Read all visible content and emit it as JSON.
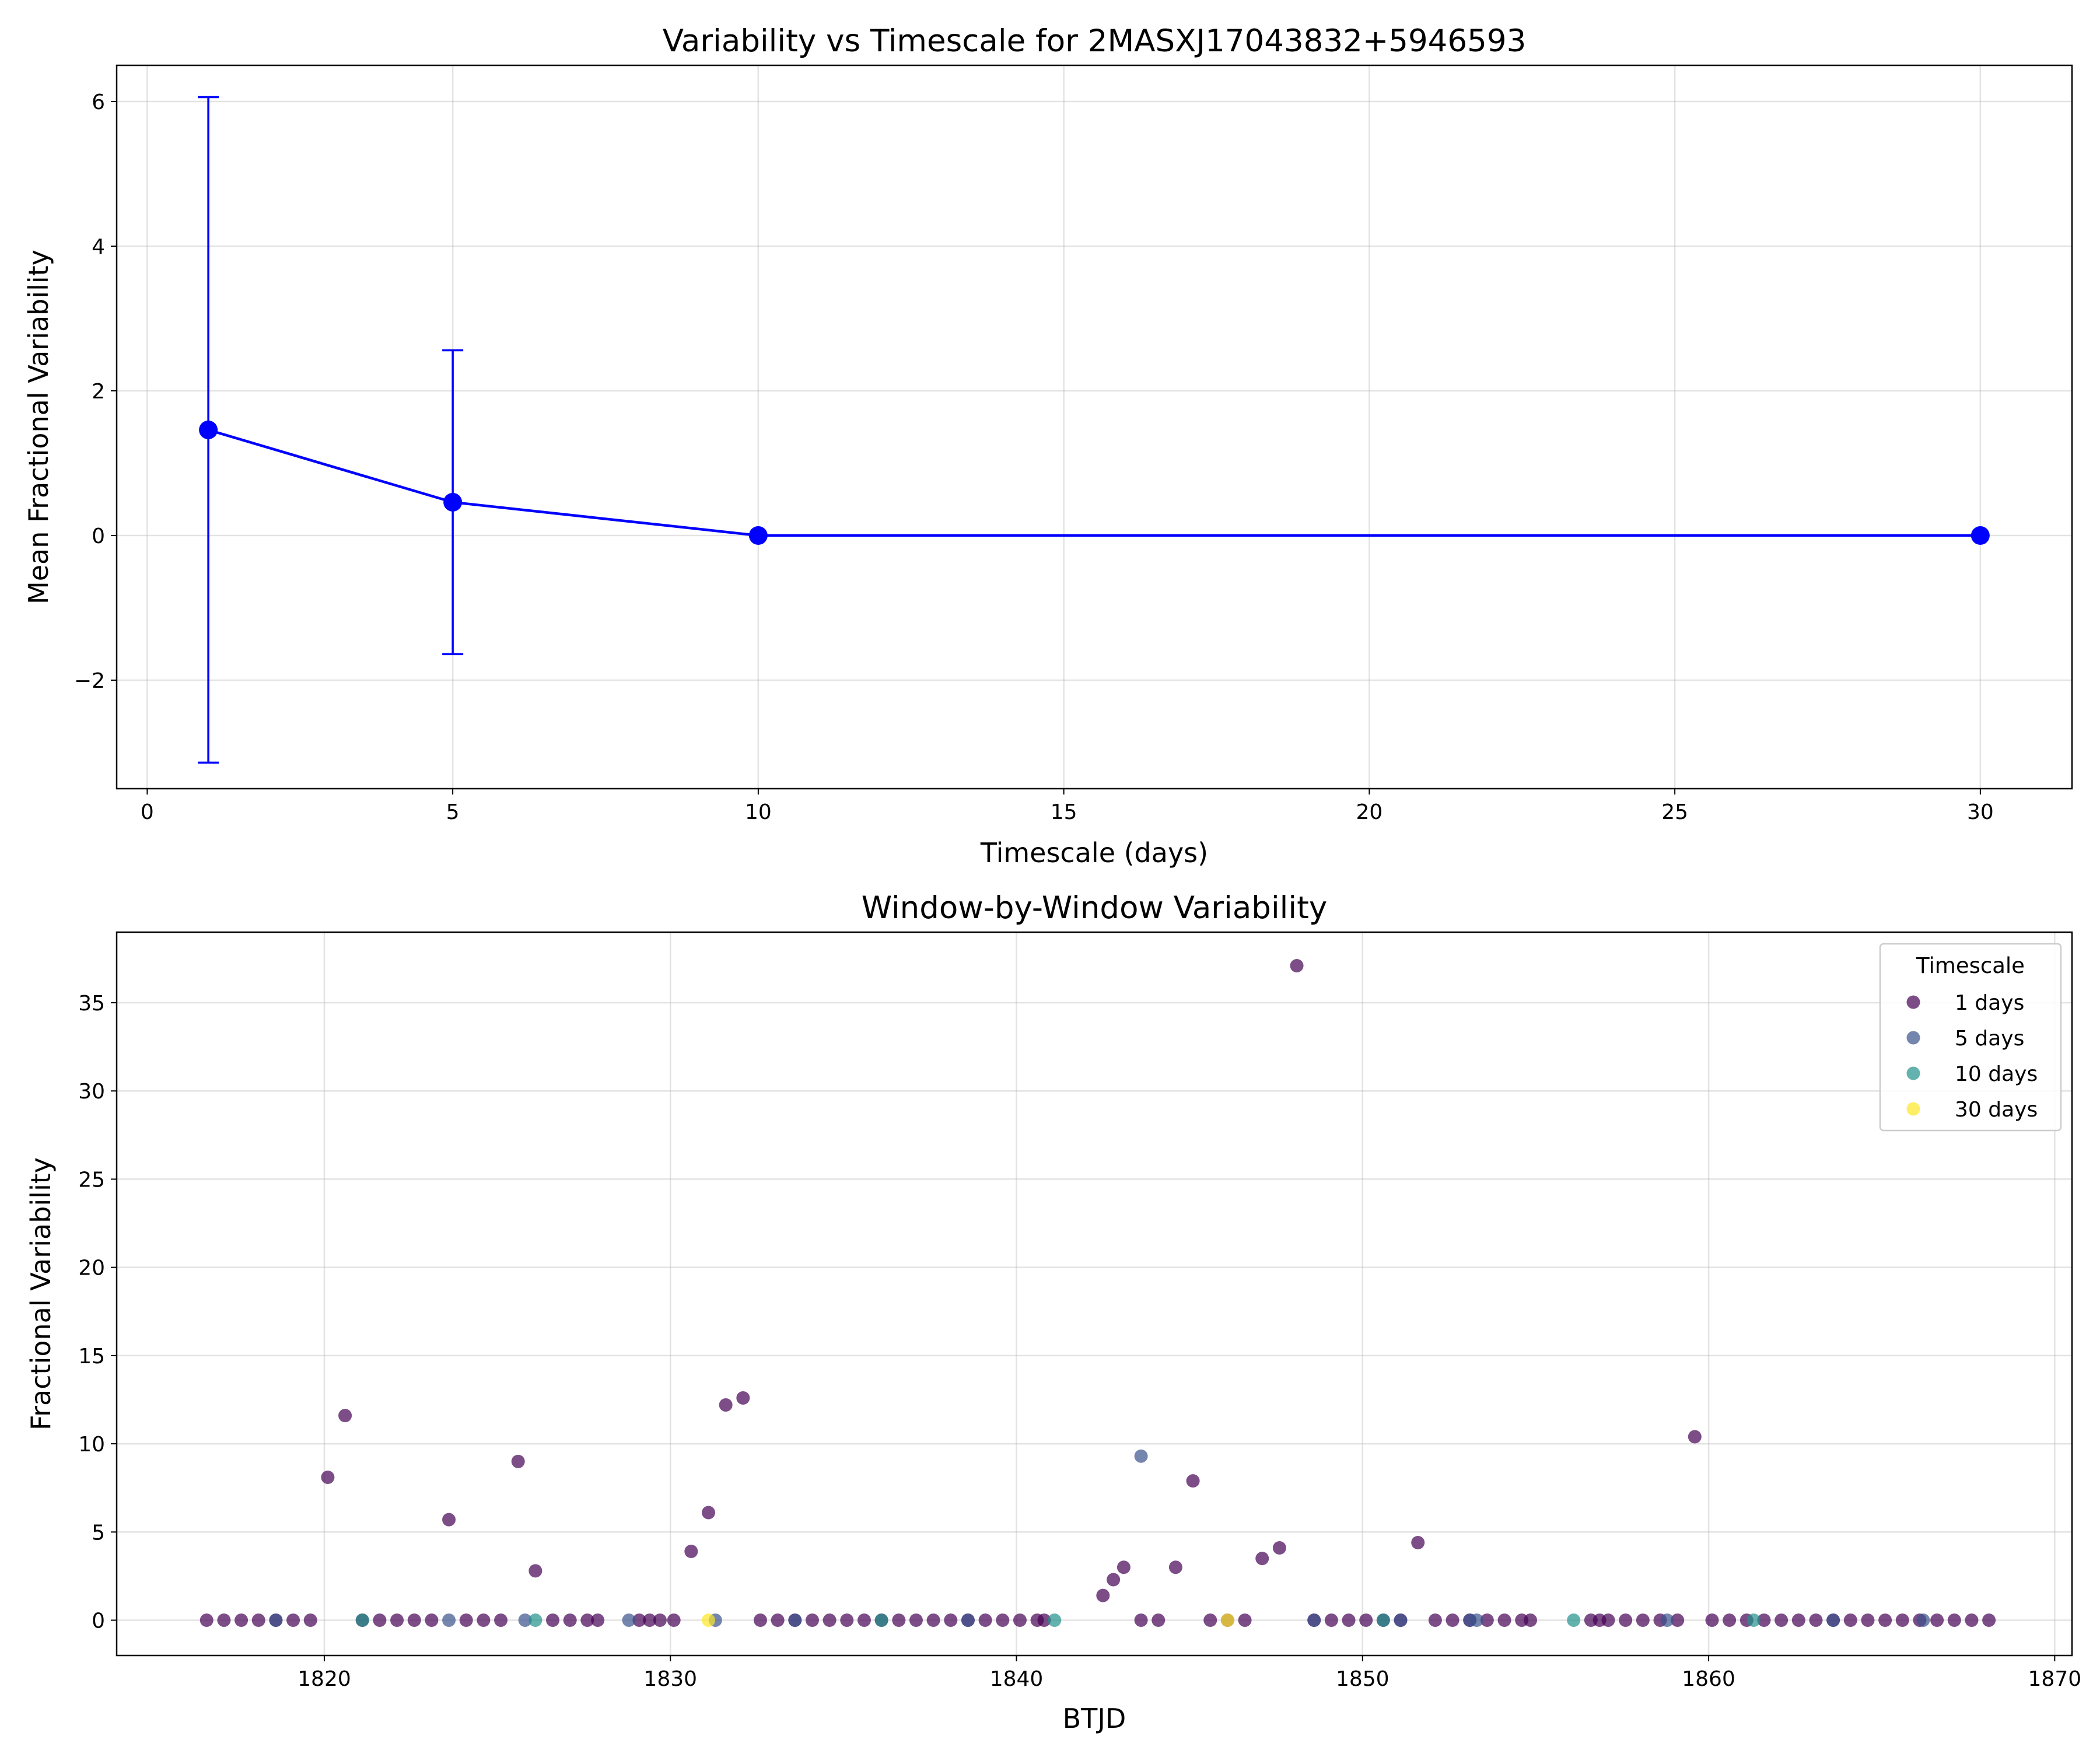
{
  "chart_data": [
    {
      "type": "line",
      "title": "Variability vs Timescale for 2MASXJ17043832+5946593",
      "xlabel": "Timescale (days)",
      "ylabel": "Mean Fractional Variability",
      "xlim": [
        -0.5,
        31.5
      ],
      "ylim": [
        -3.5,
        6.5
      ],
      "xticks": [
        0,
        5,
        10,
        15,
        20,
        25,
        30
      ],
      "yticks": [
        -2,
        0,
        2,
        4,
        6
      ],
      "ytick_labels": [
        "−2",
        "0",
        "2",
        "4",
        "6"
      ],
      "grid": true,
      "color": "#0000ff",
      "series": [
        {
          "x": [
            1,
            5,
            10,
            30
          ],
          "y": [
            1.46,
            0.46,
            0.0,
            0.0
          ],
          "err": [
            4.6,
            2.1,
            0.0,
            0.0
          ]
        }
      ]
    },
    {
      "type": "scatter",
      "title": "Window-by-Window Variability",
      "xlabel": "BTJD",
      "ylabel": "Fractional Variability",
      "xlim": [
        1814.0,
        1870.5
      ],
      "ylim": [
        -2.0,
        39.0
      ],
      "xticks": [
        1820,
        1830,
        1840,
        1850,
        1860,
        1870
      ],
      "yticks": [
        0,
        5,
        10,
        15,
        20,
        25,
        30,
        35
      ],
      "grid": true,
      "legend": {
        "title": "Timescale",
        "placement": "top-right"
      },
      "series": [
        {
          "name": "1 days",
          "color": "#440154",
          "points": [
            [
              1816.6,
              0
            ],
            [
              1817.1,
              0
            ],
            [
              1817.6,
              0
            ],
            [
              1818.1,
              0
            ],
            [
              1818.6,
              0
            ],
            [
              1819.1,
              0
            ],
            [
              1819.6,
              0
            ],
            [
              1820.1,
              8.1
            ],
            [
              1820.6,
              11.6
            ],
            [
              1821.1,
              0
            ],
            [
              1821.6,
              0
            ],
            [
              1822.1,
              0
            ],
            [
              1822.6,
              0
            ],
            [
              1823.1,
              0
            ],
            [
              1823.6,
              5.7
            ],
            [
              1824.1,
              0
            ],
            [
              1824.6,
              0
            ],
            [
              1825.1,
              0
            ],
            [
              1825.6,
              9.0
            ],
            [
              1826.1,
              2.8
            ],
            [
              1826.6,
              0
            ],
            [
              1827.1,
              0
            ],
            [
              1827.6,
              0
            ],
            [
              1827.9,
              0
            ],
            [
              1829.1,
              0
            ],
            [
              1829.4,
              0
            ],
            [
              1829.7,
              0
            ],
            [
              1830.1,
              0
            ],
            [
              1830.6,
              3.9
            ],
            [
              1831.1,
              6.1
            ],
            [
              1831.6,
              12.2
            ],
            [
              1832.1,
              12.6
            ],
            [
              1832.6,
              0
            ],
            [
              1833.1,
              0
            ],
            [
              1833.6,
              0
            ],
            [
              1834.1,
              0
            ],
            [
              1834.6,
              0
            ],
            [
              1835.1,
              0
            ],
            [
              1835.6,
              0
            ],
            [
              1836.1,
              0
            ],
            [
              1836.6,
              0
            ],
            [
              1837.1,
              0
            ],
            [
              1837.6,
              0
            ],
            [
              1838.1,
              0
            ],
            [
              1838.6,
              0
            ],
            [
              1839.1,
              0
            ],
            [
              1839.6,
              0
            ],
            [
              1840.1,
              0
            ],
            [
              1840.6,
              0
            ],
            [
              1840.8,
              0
            ],
            [
              1842.5,
              1.4
            ],
            [
              1842.8,
              2.3
            ],
            [
              1843.1,
              3.0
            ],
            [
              1843.6,
              0
            ],
            [
              1844.1,
              0
            ],
            [
              1844.6,
              3.0
            ],
            [
              1845.1,
              7.9
            ],
            [
              1845.6,
              0
            ],
            [
              1846.1,
              0
            ],
            [
              1846.6,
              0
            ],
            [
              1847.1,
              3.5
            ],
            [
              1847.6,
              4.1
            ],
            [
              1848.1,
              37.1
            ],
            [
              1848.6,
              0
            ],
            [
              1849.1,
              0
            ],
            [
              1849.6,
              0
            ],
            [
              1850.1,
              0
            ],
            [
              1850.6,
              0
            ],
            [
              1851.1,
              0
            ],
            [
              1851.6,
              4.4
            ],
            [
              1852.1,
              0
            ],
            [
              1852.6,
              0
            ],
            [
              1853.1,
              0
            ],
            [
              1853.6,
              0
            ],
            [
              1854.1,
              0
            ],
            [
              1854.6,
              0
            ],
            [
              1854.85,
              0
            ],
            [
              1856.6,
              0
            ],
            [
              1856.85,
              0
            ],
            [
              1857.1,
              0
            ],
            [
              1857.6,
              0
            ],
            [
              1858.1,
              0
            ],
            [
              1858.6,
              0
            ],
            [
              1859.1,
              0
            ],
            [
              1859.6,
              10.4
            ],
            [
              1860.1,
              0
            ],
            [
              1860.6,
              0
            ],
            [
              1861.1,
              0
            ],
            [
              1861.6,
              0
            ],
            [
              1862.1,
              0
            ],
            [
              1862.6,
              0
            ],
            [
              1863.1,
              0
            ],
            [
              1863.6,
              0
            ],
            [
              1864.1,
              0
            ],
            [
              1864.6,
              0
            ],
            [
              1865.1,
              0
            ],
            [
              1865.6,
              0
            ],
            [
              1866.1,
              0
            ],
            [
              1866.6,
              0
            ],
            [
              1867.1,
              0
            ],
            [
              1867.6,
              0
            ],
            [
              1868.1,
              0
            ]
          ]
        },
        {
          "name": "5 days",
          "color": "#3b528b",
          "points": [
            [
              1818.6,
              0
            ],
            [
              1823.6,
              0
            ],
            [
              1825.8,
              0
            ],
            [
              1828.8,
              0
            ],
            [
              1831.3,
              0
            ],
            [
              1833.6,
              0
            ],
            [
              1838.6,
              0
            ],
            [
              1843.6,
              9.3
            ],
            [
              1848.6,
              0
            ],
            [
              1851.1,
              0
            ],
            [
              1853.1,
              0
            ],
            [
              1853.3,
              0
            ],
            [
              1858.8,
              0
            ],
            [
              1863.6,
              0
            ],
            [
              1866.2,
              0
            ]
          ]
        },
        {
          "name": "10 days",
          "color": "#21918c",
          "points": [
            [
              1821.1,
              0
            ],
            [
              1826.1,
              0
            ],
            [
              1836.1,
              0
            ],
            [
              1841.1,
              0
            ],
            [
              1850.6,
              0
            ],
            [
              1856.1,
              0
            ],
            [
              1861.3,
              0
            ]
          ]
        },
        {
          "name": "30 days",
          "color": "#fde725",
          "points": [
            [
              1831.1,
              0
            ],
            [
              1846.1,
              0
            ]
          ]
        }
      ]
    }
  ]
}
